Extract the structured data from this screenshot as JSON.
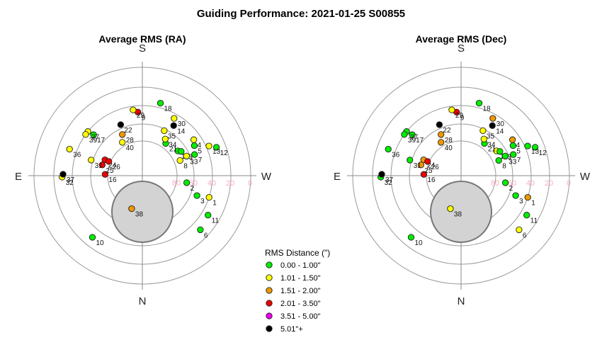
{
  "title": "Guiding Performance: 2021-01-25 S00855",
  "colors": {
    "ring": "#9a9a9a",
    "axis": "#8a8a8a",
    "obscured_fill": "#d3d3d3",
    "obscured_stroke": "#777777",
    "ring_label": "#f4b0c0"
  },
  "legend": {
    "title": "RMS Distance (\")",
    "items": [
      {
        "label": "0.00 - 1.00\"",
        "color": "#00ee00"
      },
      {
        "label": "1.01 - 1.50\"",
        "color": "#ffff00"
      },
      {
        "label": "1.51 - 2.00\"",
        "color": "#ee9900"
      },
      {
        "label": "2.01 - 3.50\"",
        "color": "#ee0000"
      },
      {
        "label": "3.51 - 5.00\"",
        "color": "#ee00ee"
      },
      {
        "label": "5.01\"+",
        "color": "#000000"
      }
    ]
  },
  "chart_data": [
    {
      "type": "scatter",
      "projection": "polar-altaz",
      "title": "Average RMS (RA)",
      "compass": {
        "top": "S",
        "bottom": "N",
        "left": "E",
        "right": "W"
      },
      "ring_altitudes": [
        0,
        20,
        40,
        60,
        80
      ],
      "ring_labels": [
        "80",
        "60",
        "40",
        "20",
        "0"
      ],
      "points": [
        {
          "label": "1",
          "az": 288,
          "alt": 40,
          "cat": 1
        },
        {
          "label": "2",
          "az": 279,
          "alt": 68,
          "cat": 0
        },
        {
          "label": "3",
          "az": 290,
          "alt": 53,
          "cat": 0
        },
        {
          "label": "4",
          "az": 235,
          "alt": 48,
          "cat": 1
        },
        {
          "label": "5",
          "az": 240,
          "alt": 51,
          "cat": 0
        },
        {
          "label": "6",
          "az": 313,
          "alt": 30,
          "cat": 0
        },
        {
          "label": "7",
          "az": 248,
          "alt": 55,
          "cat": 0
        },
        {
          "label": "8",
          "az": 248,
          "alt": 73,
          "cat": 1
        },
        {
          "label": "9",
          "az": 176,
          "alt": 47,
          "cat": 3
        },
        {
          "label": "10",
          "az": 39,
          "alt": 30,
          "cat": 0
        },
        {
          "label": "11",
          "az": 301,
          "alt": 33,
          "cat": 0
        },
        {
          "label": "12",
          "az": 249,
          "alt": 30,
          "cat": 0
        },
        {
          "label": "13",
          "az": 246,
          "alt": 37,
          "cat": 1
        },
        {
          "label": "14",
          "az": 212,
          "alt": 52,
          "cat": 5
        },
        {
          "label": "16",
          "az": 92,
          "alt": 77,
          "cat": 3
        },
        {
          "label": "17",
          "az": 130,
          "alt": 47,
          "cat": 0
        },
        {
          "label": "18",
          "az": 194,
          "alt": 35,
          "cat": 0
        },
        {
          "label": "19",
          "az": 235,
          "alt": 70,
          "cat": 0
        },
        {
          "label": "21",
          "az": 216,
          "alt": 74,
          "cat": 0
        },
        {
          "label": "22",
          "az": 157,
          "alt": 56,
          "cat": 5
        },
        {
          "label": "23",
          "az": 238,
          "alt": 67,
          "cat": 0
        },
        {
          "label": "24",
          "az": 113,
          "alt": 73,
          "cat": 3
        },
        {
          "label": "25",
          "az": 105,
          "alt": 72,
          "cat": 3
        },
        {
          "label": "26",
          "az": 113,
          "alt": 78,
          "cat": 3
        },
        {
          "label": "27",
          "az": 129,
          "alt": 40,
          "cat": 1
        },
        {
          "label": "28",
          "az": 154,
          "alt": 67,
          "cat": 2
        },
        {
          "label": "29",
          "az": 172,
          "alt": 44,
          "cat": 1
        },
        {
          "label": "30",
          "az": 209,
          "alt": 45,
          "cat": 1
        },
        {
          "label": "31",
          "az": 107,
          "alt": 58,
          "cat": 1
        },
        {
          "label": "32",
          "az": 89,
          "alt": 29,
          "cat": 1
        },
        {
          "label": "33",
          "az": 246,
          "alt": 64,
          "cat": 1
        },
        {
          "label": "34",
          "az": 212,
          "alt": 70,
          "cat": 1
        },
        {
          "label": "35",
          "az": 206,
          "alt": 62,
          "cat": 1
        },
        {
          "label": "36",
          "az": 110,
          "alt": 32,
          "cat": 1
        },
        {
          "label": "37",
          "az": 91,
          "alt": 30,
          "cat": 5
        },
        {
          "label": "38",
          "az": 18,
          "alt": 80,
          "cat": 2
        },
        {
          "label": "39",
          "az": 126,
          "alt": 40,
          "cat": 1
        },
        {
          "label": "40",
          "az": 149,
          "alt": 75,
          "cat": 1
        }
      ]
    },
    {
      "type": "scatter",
      "projection": "polar-altaz",
      "title": "Average RMS (Dec)",
      "compass": {
        "top": "S",
        "bottom": "N",
        "left": "E",
        "right": "W"
      },
      "ring_altitudes": [
        0,
        20,
        40,
        60,
        80
      ],
      "ring_labels": [
        "80",
        "60",
        "40",
        "20",
        "0"
      ],
      "points": [
        {
          "label": "1",
          "az": 288,
          "alt": 40,
          "cat": 2
        },
        {
          "label": "2",
          "az": 279,
          "alt": 68,
          "cat": 0
        },
        {
          "label": "3",
          "az": 290,
          "alt": 53,
          "cat": 0
        },
        {
          "label": "4",
          "az": 235,
          "alt": 48,
          "cat": 2
        },
        {
          "label": "5",
          "az": 240,
          "alt": 51,
          "cat": 0
        },
        {
          "label": "6",
          "az": 313,
          "alt": 30,
          "cat": 1
        },
        {
          "label": "7",
          "az": 248,
          "alt": 55,
          "cat": 0
        },
        {
          "label": "8",
          "az": 248,
          "alt": 73,
          "cat": 0
        },
        {
          "label": "9",
          "az": 176,
          "alt": 47,
          "cat": 3
        },
        {
          "label": "10",
          "az": 39,
          "alt": 30,
          "cat": 0
        },
        {
          "label": "11",
          "az": 301,
          "alt": 33,
          "cat": 0
        },
        {
          "label": "12",
          "az": 249,
          "alt": 30,
          "cat": 0
        },
        {
          "label": "13",
          "az": 246,
          "alt": 37,
          "cat": 0
        },
        {
          "label": "14",
          "az": 212,
          "alt": 52,
          "cat": 5
        },
        {
          "label": "16",
          "az": 92,
          "alt": 77,
          "cat": 3
        },
        {
          "label": "17",
          "az": 130,
          "alt": 47,
          "cat": 0
        },
        {
          "label": "18",
          "az": 194,
          "alt": 35,
          "cat": 0
        },
        {
          "label": "19",
          "az": 235,
          "alt": 70,
          "cat": 1
        },
        {
          "label": "21",
          "az": 216,
          "alt": 74,
          "cat": 0
        },
        {
          "label": "22",
          "az": 157,
          "alt": 56,
          "cat": 5
        },
        {
          "label": "23",
          "az": 238,
          "alt": 67,
          "cat": 0
        },
        {
          "label": "24",
          "az": 113,
          "alt": 73,
          "cat": 2
        },
        {
          "label": "25",
          "az": 105,
          "alt": 72,
          "cat": 2
        },
        {
          "label": "26",
          "az": 113,
          "alt": 78,
          "cat": 3
        },
        {
          "label": "27",
          "az": 129,
          "alt": 40,
          "cat": 0
        },
        {
          "label": "28",
          "az": 154,
          "alt": 67,
          "cat": 2
        },
        {
          "label": "29",
          "az": 172,
          "alt": 44,
          "cat": 1
        },
        {
          "label": "30",
          "az": 209,
          "alt": 45,
          "cat": 2
        },
        {
          "label": "31",
          "az": 107,
          "alt": 58,
          "cat": 0
        },
        {
          "label": "32",
          "az": 89,
          "alt": 29,
          "cat": 0
        },
        {
          "label": "33",
          "az": 246,
          "alt": 64,
          "cat": 0
        },
        {
          "label": "34",
          "az": 212,
          "alt": 70,
          "cat": 1
        },
        {
          "label": "35",
          "az": 206,
          "alt": 62,
          "cat": 1
        },
        {
          "label": "36",
          "az": 110,
          "alt": 32,
          "cat": 0
        },
        {
          "label": "37",
          "az": 91,
          "alt": 30,
          "cat": 5
        },
        {
          "label": "38",
          "az": 18,
          "alt": 80,
          "cat": 1
        },
        {
          "label": "39",
          "az": 126,
          "alt": 40,
          "cat": 0
        },
        {
          "label": "40",
          "az": 149,
          "alt": 75,
          "cat": 2
        }
      ]
    }
  ]
}
